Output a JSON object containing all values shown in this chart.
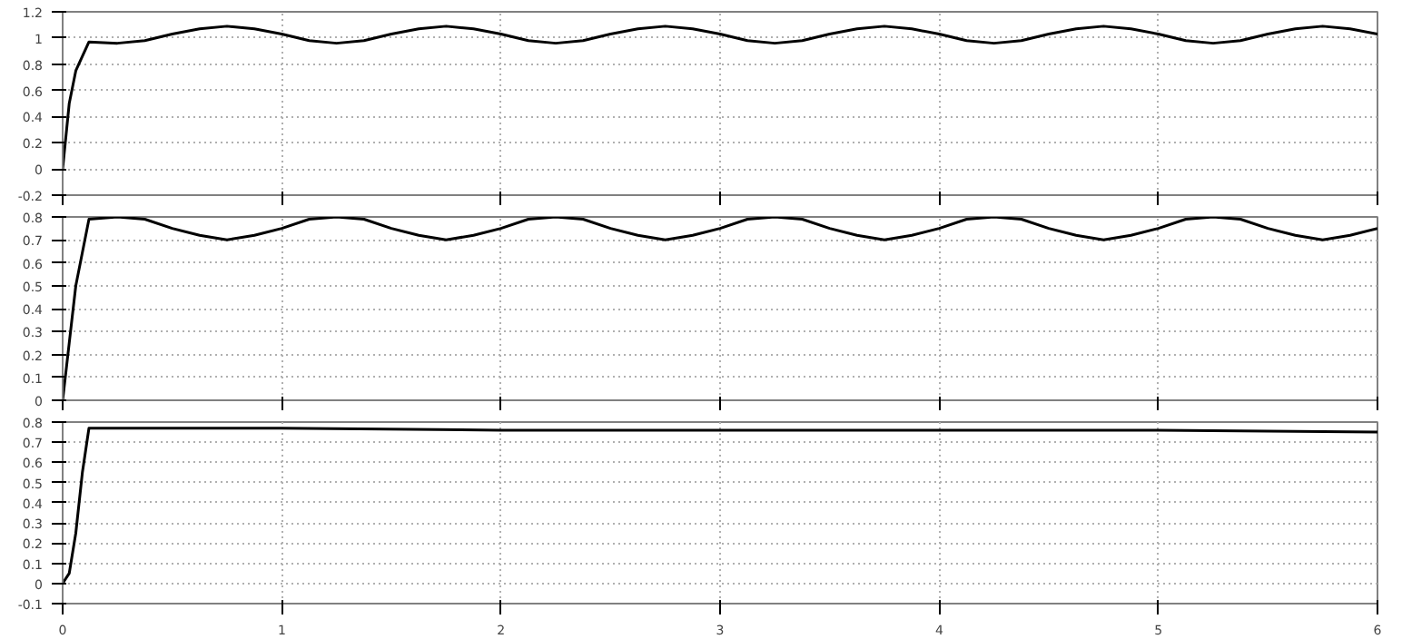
{
  "chart_data": [
    {
      "type": "line",
      "x": [
        0,
        0.03,
        0.06,
        0.12,
        0.25,
        0.375,
        0.5,
        0.625,
        0.75,
        0.875,
        1,
        1.125,
        1.25,
        1.375,
        1.5,
        1.625,
        1.75,
        1.875,
        2,
        2.125,
        2.25,
        2.375,
        2.5,
        2.625,
        2.75,
        2.875,
        3,
        3.125,
        3.25,
        3.375,
        3.5,
        3.625,
        3.75,
        3.875,
        4,
        4.125,
        4.25,
        4.375,
        4.5,
        4.625,
        4.75,
        4.875,
        5,
        5.125,
        5.25,
        5.375,
        5.5,
        5.625,
        5.75,
        5.875,
        6
      ],
      "series": [
        {
          "color": "#000000",
          "values": [
            0,
            0.5,
            0.75,
            0.97,
            0.96,
            0.98,
            1.03,
            1.07,
            1.09,
            1.07,
            1.03,
            0.98,
            0.96,
            0.98,
            1.03,
            1.07,
            1.09,
            1.07,
            1.03,
            0.98,
            0.96,
            0.98,
            1.03,
            1.07,
            1.09,
            1.07,
            1.03,
            0.98,
            0.96,
            0.98,
            1.03,
            1.07,
            1.09,
            1.07,
            1.03,
            0.98,
            0.96,
            0.98,
            1.03,
            1.07,
            1.09,
            1.07,
            1.03,
            0.98,
            0.96,
            0.98,
            1.03,
            1.07,
            1.09,
            1.07,
            1.03
          ]
        }
      ],
      "xlim": [
        0,
        6
      ],
      "xticks": [
        0,
        1,
        2,
        3,
        4,
        5,
        6
      ],
      "ylim": [
        -0.2,
        1.2
      ],
      "yticks": [
        -0.2,
        0,
        0.2,
        0.4,
        0.6,
        0.8,
        1,
        1.2
      ],
      "grid": true,
      "tick_labels": "y"
    },
    {
      "type": "line",
      "x": [
        0,
        0.03,
        0.06,
        0.12,
        0.25,
        0.375,
        0.5,
        0.625,
        0.75,
        0.875,
        1,
        1.125,
        1.25,
        1.375,
        1.5,
        1.625,
        1.75,
        1.875,
        2,
        2.125,
        2.25,
        2.375,
        2.5,
        2.625,
        2.75,
        2.875,
        3,
        3.125,
        3.25,
        3.375,
        3.5,
        3.625,
        3.75,
        3.875,
        4,
        4.125,
        4.25,
        4.375,
        4.5,
        4.625,
        4.75,
        4.875,
        5,
        5.125,
        5.25,
        5.375,
        5.5,
        5.625,
        5.75,
        5.875,
        6
      ],
      "series": [
        {
          "color": "#000000",
          "values": [
            0,
            0.25,
            0.5,
            0.79,
            0.8,
            0.79,
            0.75,
            0.72,
            0.7,
            0.72,
            0.75,
            0.79,
            0.8,
            0.79,
            0.75,
            0.72,
            0.7,
            0.72,
            0.75,
            0.79,
            0.8,
            0.79,
            0.75,
            0.72,
            0.7,
            0.72,
            0.75,
            0.79,
            0.8,
            0.79,
            0.75,
            0.72,
            0.7,
            0.72,
            0.75,
            0.79,
            0.8,
            0.79,
            0.75,
            0.72,
            0.7,
            0.72,
            0.75,
            0.79,
            0.8,
            0.79,
            0.75,
            0.72,
            0.7,
            0.72,
            0.75
          ]
        }
      ],
      "xlim": [
        0,
        6
      ],
      "xticks": [
        0,
        1,
        2,
        3,
        4,
        5,
        6
      ],
      "ylim": [
        0,
        0.8
      ],
      "yticks": [
        0,
        0.1,
        0.2,
        0.3,
        0.4,
        0.5,
        0.6,
        0.7,
        0.8
      ],
      "grid": true,
      "tick_labels": "y"
    },
    {
      "type": "line",
      "x": [
        0,
        0.03,
        0.06,
        0.09,
        0.12,
        1,
        2,
        3,
        4,
        5,
        6
      ],
      "series": [
        {
          "color": "#000000",
          "values": [
            0,
            0.05,
            0.25,
            0.55,
            0.77,
            0.77,
            0.76,
            0.76,
            0.76,
            0.76,
            0.75
          ]
        }
      ],
      "xlim": [
        0,
        6
      ],
      "xticks": [
        0,
        1,
        2,
        3,
        4,
        5,
        6
      ],
      "ylim": [
        -0.1,
        0.8
      ],
      "yticks": [
        -0.1,
        0,
        0.1,
        0.2,
        0.3,
        0.4,
        0.5,
        0.6,
        0.7,
        0.8
      ],
      "grid": true
    }
  ]
}
